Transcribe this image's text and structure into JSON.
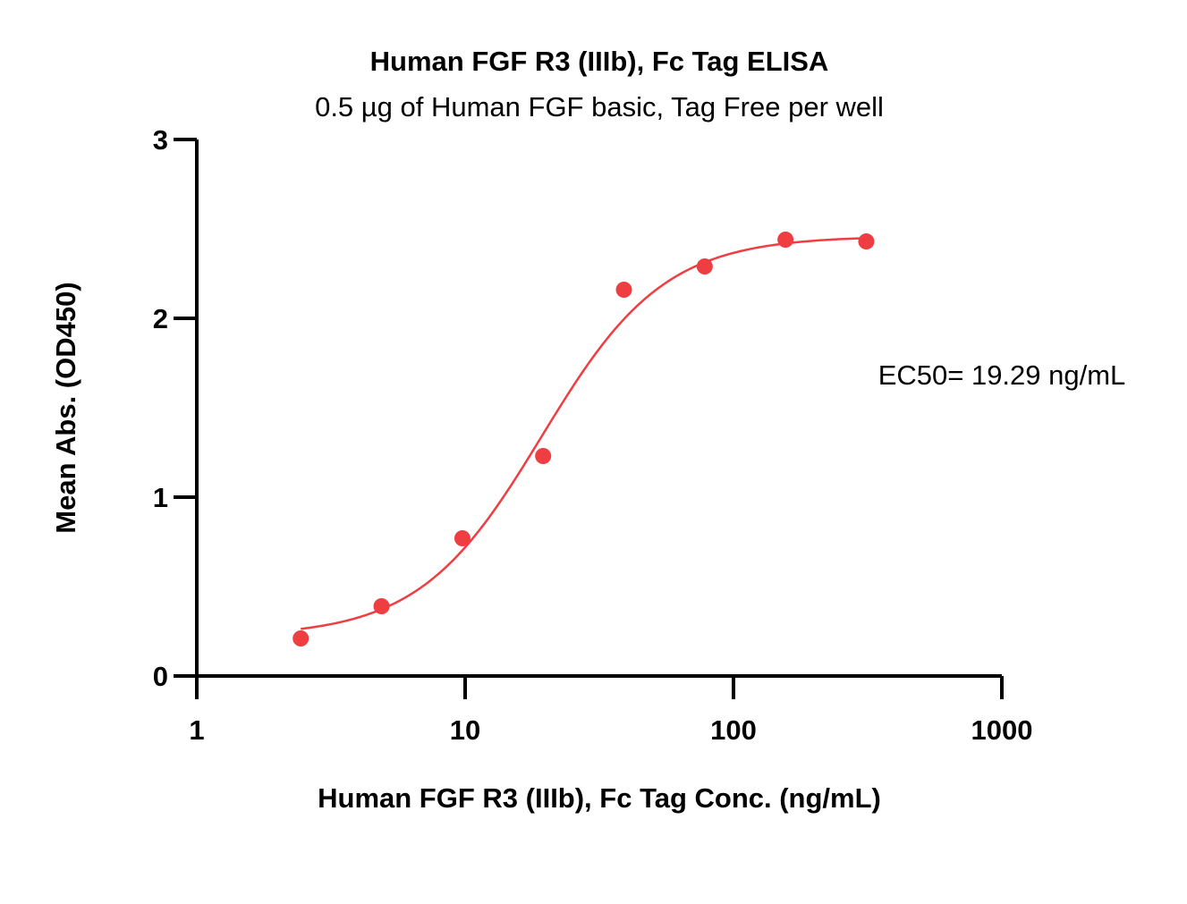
{
  "chart_data": {
    "type": "scatter",
    "title": "Human FGF R3 (IIIb), Fc Tag ELISA",
    "subtitle": "0.5 µg of Human FGF basic, Tag Free per well",
    "xlabel": "Human FGF R3 (IIIb), Fc Tag Conc. (ng/mL)",
    "ylabel": "Mean Abs. (OD450)",
    "x_scale": "log",
    "xlim": [
      1,
      1000
    ],
    "ylim": [
      0,
      3
    ],
    "x_ticks": [
      1,
      10,
      100,
      1000
    ],
    "x_tick_labels": [
      "1",
      "10",
      "100",
      "1000"
    ],
    "y_ticks": [
      0,
      1,
      2,
      3
    ],
    "y_tick_labels": [
      "0",
      "1",
      "2",
      "3"
    ],
    "grid": false,
    "series": [
      {
        "points": [
          {
            "x": 2.44,
            "y": 0.21
          },
          {
            "x": 4.88,
            "y": 0.39
          },
          {
            "x": 9.77,
            "y": 0.77
          },
          {
            "x": 19.53,
            "y": 1.23
          },
          {
            "x": 39.06,
            "y": 2.16
          },
          {
            "x": 78.13,
            "y": 2.29
          },
          {
            "x": 156.25,
            "y": 2.44
          },
          {
            "x": 312.5,
            "y": 2.43
          }
        ],
        "color": "#ef3e42"
      }
    ],
    "fit": {
      "model": "4PL",
      "bottom": 0.22,
      "top": 2.46,
      "ec50": 19.29,
      "hill": 1.9,
      "x_range": [
        2.44,
        312.5
      ],
      "color": "#ef3e42"
    },
    "annotations": [
      {
        "text": "EC50= 19.29 ng/mL"
      }
    ]
  }
}
